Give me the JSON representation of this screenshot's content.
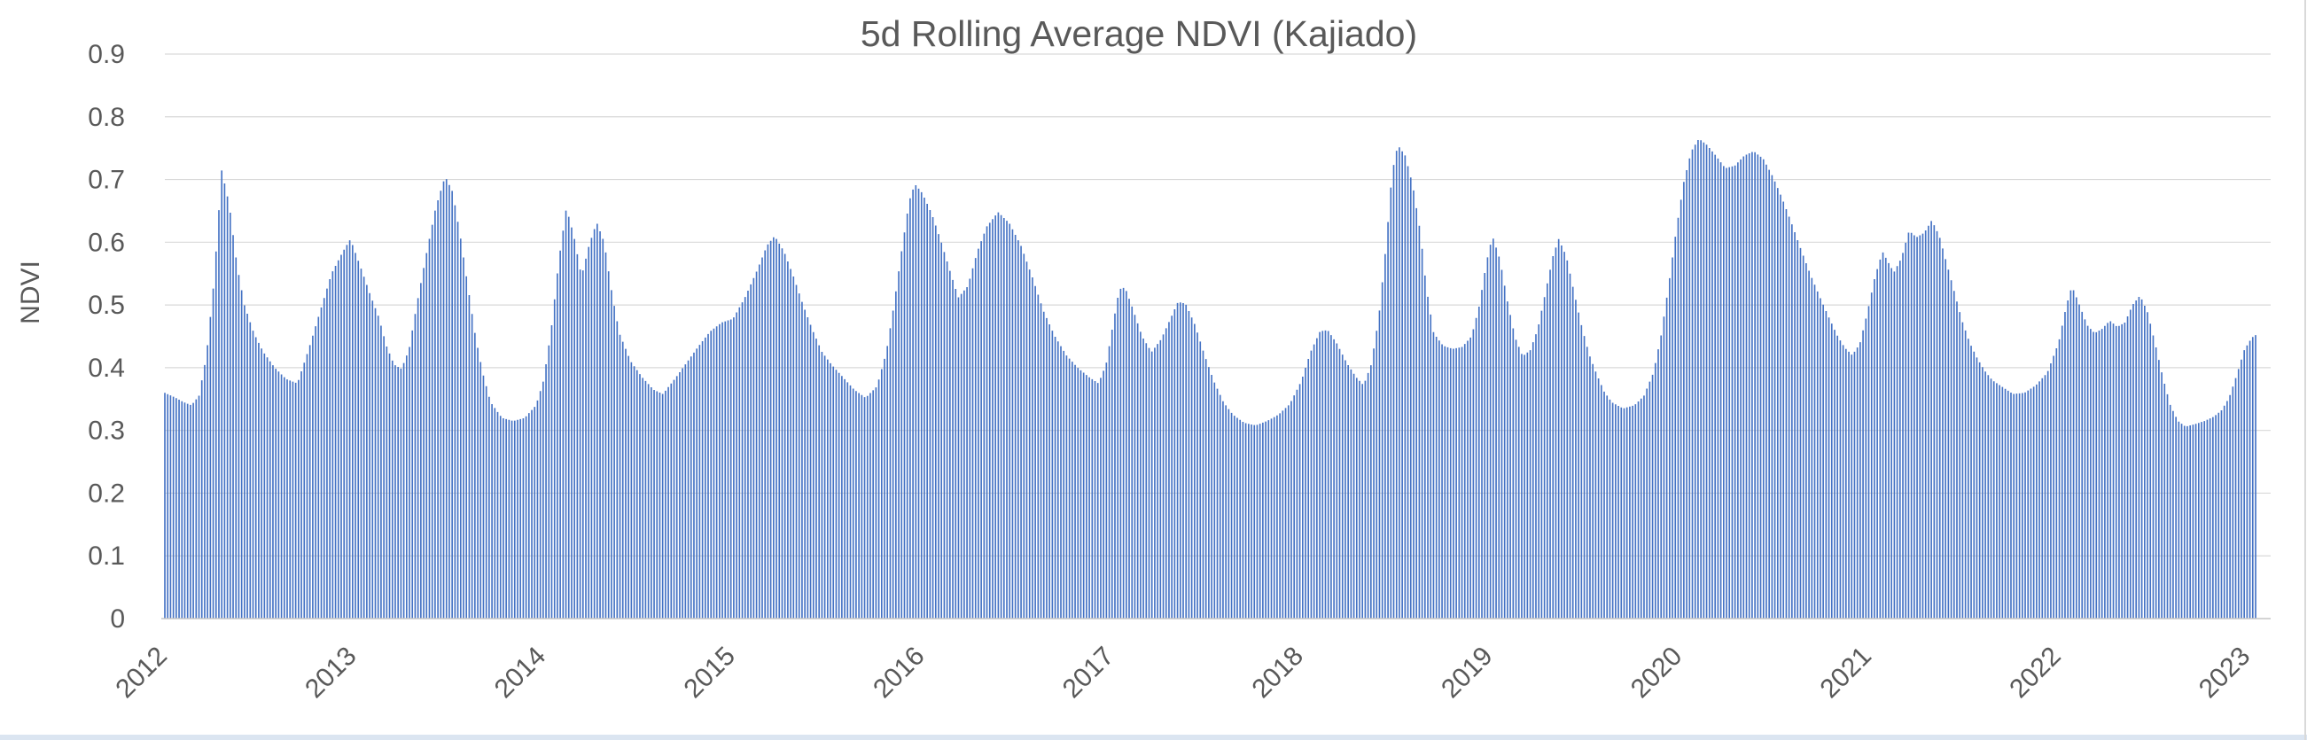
{
  "window": {
    "right_border_color": "#d9d9d9",
    "bottom_strip_color": "#dbe5f1"
  },
  "chart_data": {
    "type": "bar",
    "title": "5d Rolling Average NDVI (Kajiado)",
    "xlabel": "",
    "ylabel": "NDVI",
    "ylim": [
      0,
      0.9
    ],
    "grid": true,
    "legend": false,
    "bar_color": "#4472C4",
    "grid_color": "#D9D9D9",
    "axis_line_color": "#C6C6C6",
    "text_color": "#595959",
    "ytick_labels": [
      "0",
      "0.1",
      "0.2",
      "0.3",
      "0.4",
      "0.5",
      "0.6",
      "0.7",
      "0.8",
      "0.9"
    ],
    "ytick_values": [
      0,
      0.1,
      0.2,
      0.3,
      0.4,
      0.5,
      0.6,
      0.7,
      0.8,
      0.9
    ],
    "xtick_years": [
      2012,
      2013,
      2014,
      2015,
      2016,
      2017,
      2018,
      2019,
      2020,
      2021,
      2022,
      2023
    ],
    "x_start": 2012.0,
    "x_end": 2023.04,
    "bar_count": 736,
    "series_name": "5d rolling average NDVI",
    "keypoints": [
      [
        2012.0,
        0.36
      ],
      [
        2012.05,
        0.353
      ],
      [
        2012.1,
        0.345
      ],
      [
        2012.14,
        0.34
      ],
      [
        2012.18,
        0.355
      ],
      [
        2012.22,
        0.42
      ],
      [
        2012.26,
        0.54
      ],
      [
        2012.3,
        0.715
      ],
      [
        2012.34,
        0.66
      ],
      [
        2012.38,
        0.565
      ],
      [
        2012.42,
        0.5
      ],
      [
        2012.47,
        0.455
      ],
      [
        2012.52,
        0.425
      ],
      [
        2012.58,
        0.4
      ],
      [
        2012.64,
        0.382
      ],
      [
        2012.7,
        0.375
      ],
      [
        2012.76,
        0.43
      ],
      [
        2012.82,
        0.49
      ],
      [
        2012.88,
        0.55
      ],
      [
        2012.94,
        0.585
      ],
      [
        2012.98,
        0.605
      ],
      [
        2013.04,
        0.555
      ],
      [
        2013.08,
        0.52
      ],
      [
        2013.13,
        0.48
      ],
      [
        2013.17,
        0.435
      ],
      [
        2013.21,
        0.405
      ],
      [
        2013.25,
        0.398
      ],
      [
        2013.29,
        0.43
      ],
      [
        2013.33,
        0.5
      ],
      [
        2013.38,
        0.58
      ],
      [
        2013.43,
        0.655
      ],
      [
        2013.48,
        0.705
      ],
      [
        2013.52,
        0.68
      ],
      [
        2013.56,
        0.61
      ],
      [
        2013.6,
        0.53
      ],
      [
        2013.64,
        0.45
      ],
      [
        2013.68,
        0.39
      ],
      [
        2013.72,
        0.345
      ],
      [
        2013.78,
        0.32
      ],
      [
        2013.84,
        0.315
      ],
      [
        2013.9,
        0.32
      ],
      [
        2013.96,
        0.34
      ],
      [
        2014.0,
        0.38
      ],
      [
        2014.04,
        0.46
      ],
      [
        2014.08,
        0.57
      ],
      [
        2014.12,
        0.655
      ],
      [
        2014.16,
        0.61
      ],
      [
        2014.2,
        0.545
      ],
      [
        2014.24,
        0.595
      ],
      [
        2014.28,
        0.632
      ],
      [
        2014.32,
        0.6
      ],
      [
        2014.36,
        0.52
      ],
      [
        2014.4,
        0.455
      ],
      [
        2014.46,
        0.41
      ],
      [
        2014.52,
        0.385
      ],
      [
        2014.58,
        0.365
      ],
      [
        2014.63,
        0.358
      ],
      [
        2014.7,
        0.385
      ],
      [
        2014.76,
        0.41
      ],
      [
        2014.82,
        0.435
      ],
      [
        2014.88,
        0.458
      ],
      [
        2014.94,
        0.472
      ],
      [
        2015.0,
        0.478
      ],
      [
        2015.06,
        0.51
      ],
      [
        2015.12,
        0.55
      ],
      [
        2015.18,
        0.595
      ],
      [
        2015.22,
        0.61
      ],
      [
        2015.27,
        0.585
      ],
      [
        2015.32,
        0.545
      ],
      [
        2015.37,
        0.5
      ],
      [
        2015.42,
        0.46
      ],
      [
        2015.47,
        0.425
      ],
      [
        2015.52,
        0.405
      ],
      [
        2015.58,
        0.385
      ],
      [
        2015.64,
        0.365
      ],
      [
        2015.7,
        0.352
      ],
      [
        2015.76,
        0.37
      ],
      [
        2015.81,
        0.425
      ],
      [
        2015.85,
        0.5
      ],
      [
        2015.89,
        0.585
      ],
      [
        2015.93,
        0.665
      ],
      [
        2015.96,
        0.693
      ],
      [
        2016.0,
        0.678
      ],
      [
        2016.05,
        0.645
      ],
      [
        2016.1,
        0.6
      ],
      [
        2016.15,
        0.55
      ],
      [
        2016.19,
        0.512
      ],
      [
        2016.24,
        0.53
      ],
      [
        2016.29,
        0.585
      ],
      [
        2016.34,
        0.625
      ],
      [
        2016.4,
        0.648
      ],
      [
        2016.46,
        0.63
      ],
      [
        2016.52,
        0.595
      ],
      [
        2016.58,
        0.545
      ],
      [
        2016.64,
        0.49
      ],
      [
        2016.7,
        0.45
      ],
      [
        2016.76,
        0.42
      ],
      [
        2016.82,
        0.4
      ],
      [
        2016.88,
        0.385
      ],
      [
        2016.93,
        0.375
      ],
      [
        2016.97,
        0.405
      ],
      [
        2017.01,
        0.475
      ],
      [
        2017.04,
        0.525
      ],
      [
        2017.07,
        0.528
      ],
      [
        2017.11,
        0.495
      ],
      [
        2017.16,
        0.45
      ],
      [
        2017.21,
        0.425
      ],
      [
        2017.26,
        0.445
      ],
      [
        2017.31,
        0.478
      ],
      [
        2017.35,
        0.505
      ],
      [
        2017.39,
        0.502
      ],
      [
        2017.44,
        0.468
      ],
      [
        2017.49,
        0.42
      ],
      [
        2017.54,
        0.378
      ],
      [
        2017.59,
        0.345
      ],
      [
        2017.64,
        0.325
      ],
      [
        2017.7,
        0.312
      ],
      [
        2017.76,
        0.308
      ],
      [
        2017.82,
        0.315
      ],
      [
        2017.88,
        0.325
      ],
      [
        2017.94,
        0.342
      ],
      [
        2018.0,
        0.378
      ],
      [
        2018.05,
        0.425
      ],
      [
        2018.1,
        0.458
      ],
      [
        2018.14,
        0.46
      ],
      [
        2018.19,
        0.438
      ],
      [
        2018.24,
        0.408
      ],
      [
        2018.29,
        0.385
      ],
      [
        2018.33,
        0.372
      ],
      [
        2018.37,
        0.405
      ],
      [
        2018.41,
        0.48
      ],
      [
        2018.45,
        0.6
      ],
      [
        2018.48,
        0.71
      ],
      [
        2018.51,
        0.755
      ],
      [
        2018.55,
        0.738
      ],
      [
        2018.59,
        0.69
      ],
      [
        2018.63,
        0.615
      ],
      [
        2018.66,
        0.53
      ],
      [
        2018.7,
        0.455
      ],
      [
        2018.75,
        0.435
      ],
      [
        2018.8,
        0.43
      ],
      [
        2018.85,
        0.433
      ],
      [
        2018.9,
        0.45
      ],
      [
        2018.94,
        0.498
      ],
      [
        2018.98,
        0.57
      ],
      [
        2019.01,
        0.61
      ],
      [
        2019.05,
        0.572
      ],
      [
        2019.09,
        0.505
      ],
      [
        2019.13,
        0.448
      ],
      [
        2019.17,
        0.418
      ],
      [
        2019.21,
        0.428
      ],
      [
        2019.25,
        0.462
      ],
      [
        2019.29,
        0.52
      ],
      [
        2019.33,
        0.578
      ],
      [
        2019.36,
        0.605
      ],
      [
        2019.4,
        0.578
      ],
      [
        2019.44,
        0.522
      ],
      [
        2019.48,
        0.468
      ],
      [
        2019.52,
        0.422
      ],
      [
        2019.56,
        0.39
      ],
      [
        2019.6,
        0.362
      ],
      [
        2019.64,
        0.345
      ],
      [
        2019.7,
        0.335
      ],
      [
        2019.76,
        0.34
      ],
      [
        2019.81,
        0.355
      ],
      [
        2019.86,
        0.392
      ],
      [
        2019.9,
        0.45
      ],
      [
        2019.94,
        0.53
      ],
      [
        2019.98,
        0.618
      ],
      [
        2020.02,
        0.695
      ],
      [
        2020.06,
        0.745
      ],
      [
        2020.1,
        0.765
      ],
      [
        2020.14,
        0.756
      ],
      [
        2020.19,
        0.738
      ],
      [
        2020.24,
        0.718
      ],
      [
        2020.29,
        0.722
      ],
      [
        2020.34,
        0.738
      ],
      [
        2020.39,
        0.745
      ],
      [
        2020.44,
        0.733
      ],
      [
        2020.49,
        0.705
      ],
      [
        2020.54,
        0.67
      ],
      [
        2020.59,
        0.63
      ],
      [
        2020.64,
        0.588
      ],
      [
        2020.69,
        0.548
      ],
      [
        2020.74,
        0.512
      ],
      [
        2020.79,
        0.478
      ],
      [
        2020.83,
        0.452
      ],
      [
        2020.87,
        0.432
      ],
      [
        2020.91,
        0.42
      ],
      [
        2020.95,
        0.438
      ],
      [
        2020.99,
        0.488
      ],
      [
        2021.03,
        0.545
      ],
      [
        2021.07,
        0.585
      ],
      [
        2021.1,
        0.568
      ],
      [
        2021.13,
        0.552
      ],
      [
        2021.17,
        0.575
      ],
      [
        2021.21,
        0.618
      ],
      [
        2021.25,
        0.608
      ],
      [
        2021.29,
        0.615
      ],
      [
        2021.33,
        0.635
      ],
      [
        2021.37,
        0.61
      ],
      [
        2021.41,
        0.565
      ],
      [
        2021.45,
        0.52
      ],
      [
        2021.49,
        0.475
      ],
      [
        2021.53,
        0.44
      ],
      [
        2021.57,
        0.415
      ],
      [
        2021.61,
        0.395
      ],
      [
        2021.65,
        0.38
      ],
      [
        2021.7,
        0.37
      ],
      [
        2021.76,
        0.358
      ],
      [
        2021.82,
        0.36
      ],
      [
        2021.88,
        0.372
      ],
      [
        2021.94,
        0.392
      ],
      [
        2022.0,
        0.44
      ],
      [
        2022.04,
        0.498
      ],
      [
        2022.07,
        0.53
      ],
      [
        2022.11,
        0.5
      ],
      [
        2022.15,
        0.468
      ],
      [
        2022.19,
        0.455
      ],
      [
        2022.23,
        0.462
      ],
      [
        2022.27,
        0.475
      ],
      [
        2022.31,
        0.465
      ],
      [
        2022.35,
        0.472
      ],
      [
        2022.39,
        0.5
      ],
      [
        2022.43,
        0.515
      ],
      [
        2022.47,
        0.488
      ],
      [
        2022.51,
        0.438
      ],
      [
        2022.55,
        0.385
      ],
      [
        2022.59,
        0.34
      ],
      [
        2022.63,
        0.315
      ],
      [
        2022.67,
        0.306
      ],
      [
        2022.72,
        0.31
      ],
      [
        2022.77,
        0.315
      ],
      [
        2022.82,
        0.322
      ],
      [
        2022.86,
        0.332
      ],
      [
        2022.9,
        0.352
      ],
      [
        2022.94,
        0.388
      ],
      [
        2022.98,
        0.428
      ],
      [
        2023.02,
        0.448
      ],
      [
        2023.04,
        0.452
      ]
    ]
  }
}
